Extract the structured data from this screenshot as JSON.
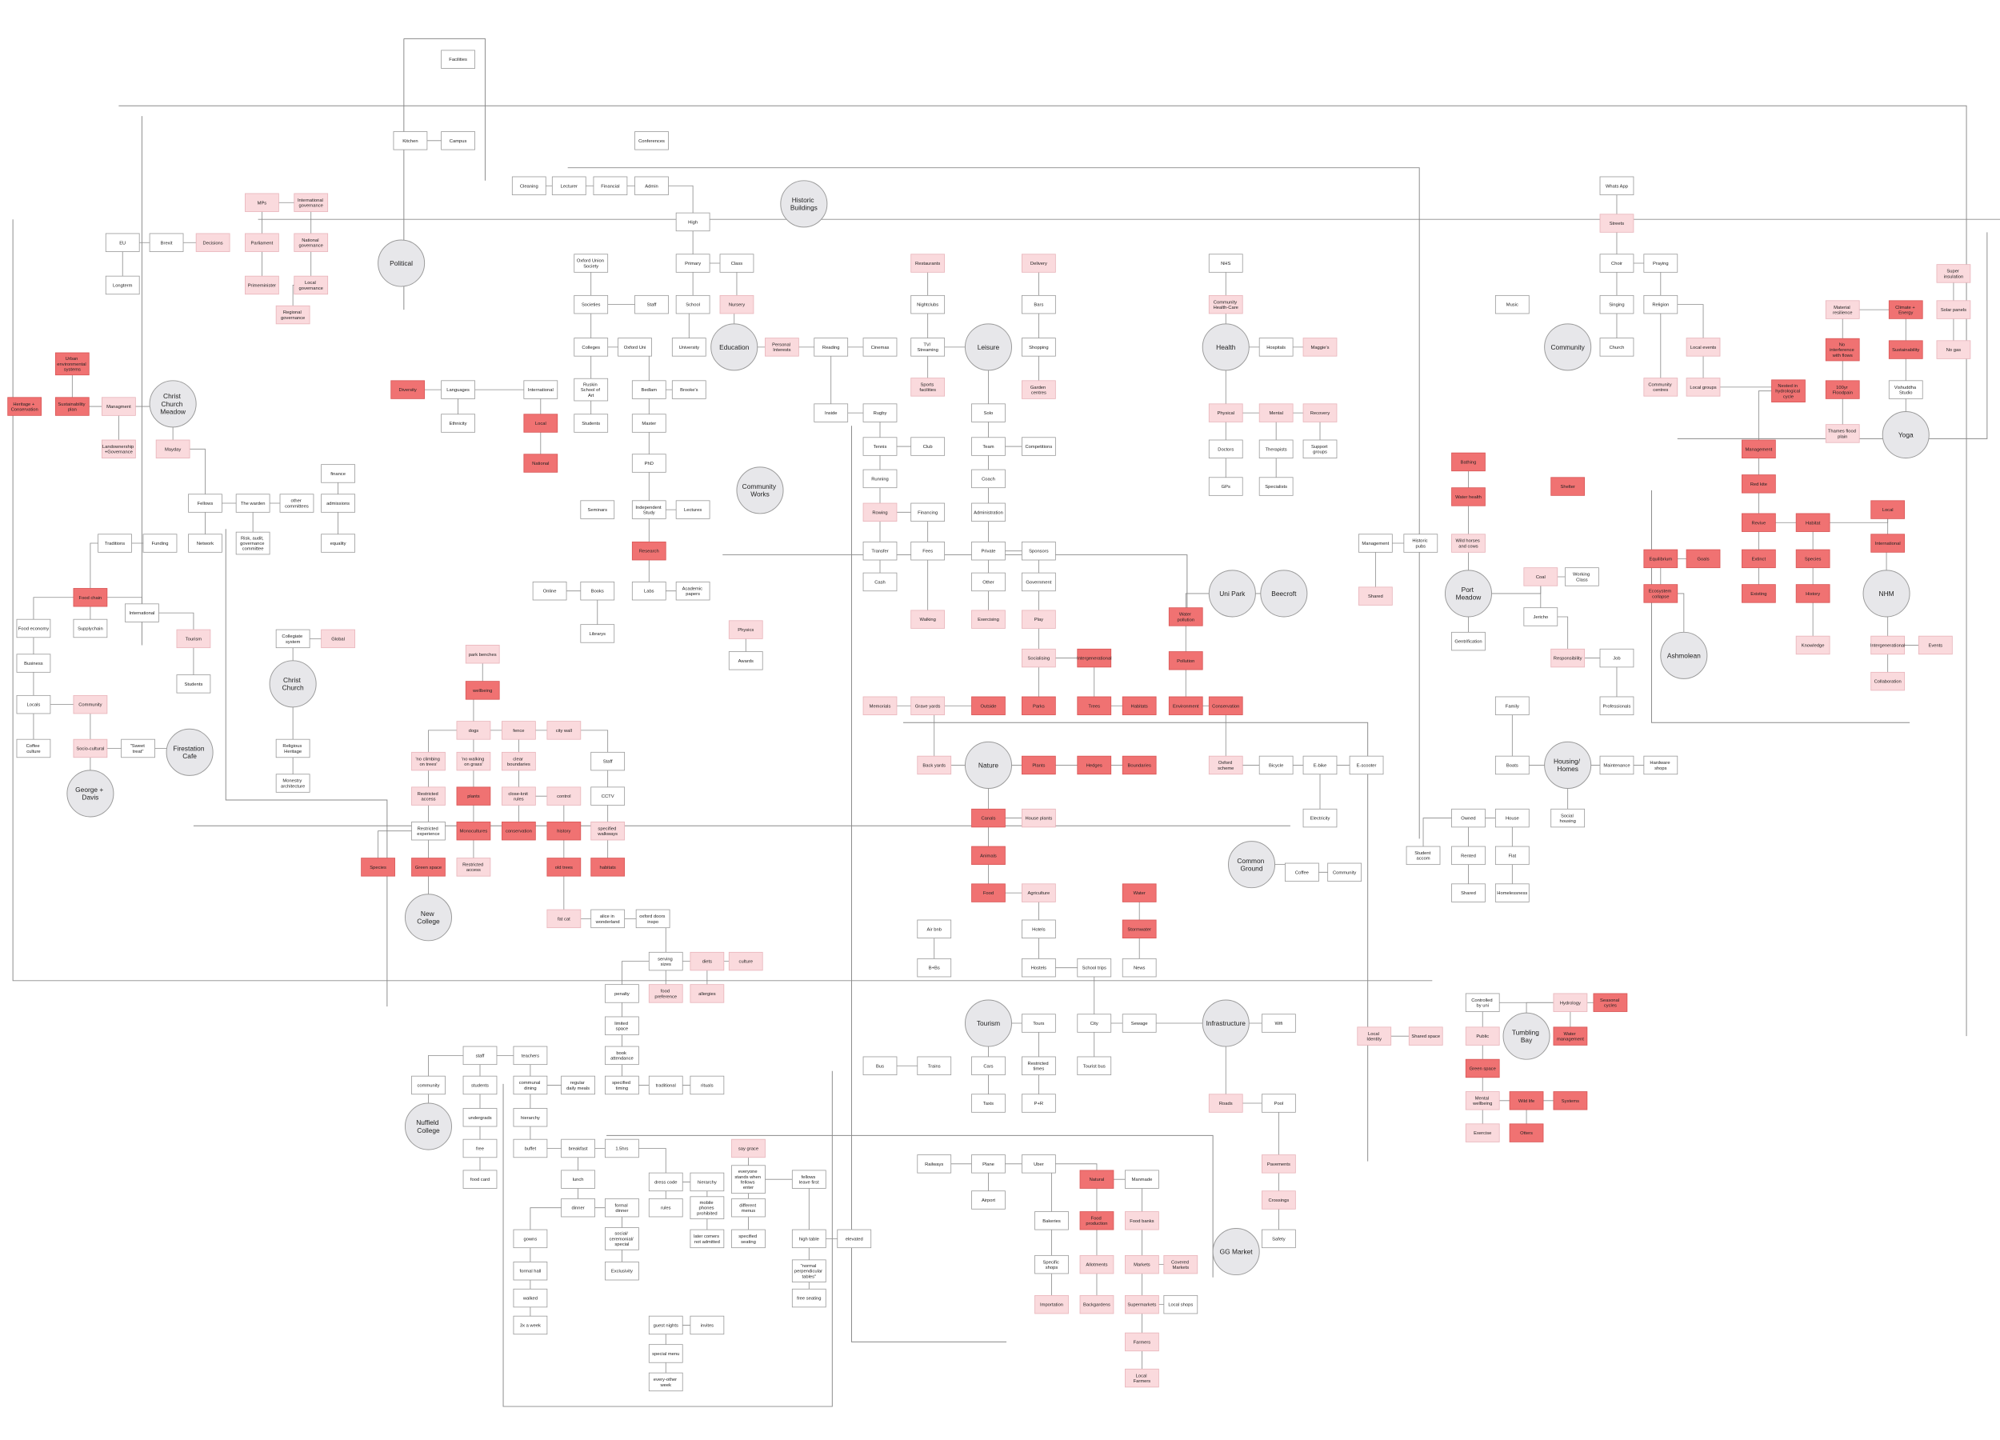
{
  "nodes": [
    "Facilities",
    "Kitchen",
    "Campus",
    "Conferences",
    "Cleaning",
    "Lecturer",
    "Financial",
    "Admin",
    "Historic Buildings",
    "Whats App",
    "Streets",
    "MPs",
    "International governance",
    "EU",
    "Brexit",
    "Decisions",
    "Parliament",
    "National governance",
    "Longterm",
    "Primeminister",
    "Local governance",
    "Regional governance",
    "Political",
    "High",
    "Oxford Union Society",
    "Primary",
    "Class",
    "Restaurants",
    "Delivery",
    "NHS",
    "Choir",
    "Praying",
    "Super insulation",
    "Societies",
    "Staff",
    "School",
    "Nursery",
    "Nightclubs",
    "Bars",
    "Community Health-Care",
    "Music",
    "Singing",
    "Religion",
    "Material resilience",
    "Climate + Energy",
    "Solar panels",
    "Urban environmental systems",
    "Colleges",
    "Oxford Uni",
    "University",
    "Education",
    "Personal Interests",
    "Reading",
    "Cinemas",
    "TV/ Streaming",
    "Leisure",
    "Shopping",
    "Health",
    "Hospitals",
    "Maggie's",
    "Community",
    "Church",
    "Local events",
    "No interference with flows",
    "Sustainability",
    "No gas",
    "Heritage + Conservation",
    "Sustainability plan",
    "Managment",
    "Christ Church Meadow",
    "Diversity",
    "Languages",
    "International",
    "Ruskin School of Art",
    "Bedlam",
    "Brooke's",
    "Sports facilities",
    "Garden centres",
    "Community centres",
    "Local groups",
    "Nested in hydrological cycle",
    "100yr Floodpain",
    "Vishuddha Studio",
    "Landownership +Governance",
    "Mayday",
    "Ethnicity",
    "Local",
    "Students",
    "Master",
    "Inside",
    "Rugby",
    "Solo",
    "Physical",
    "Mental",
    "Recovery",
    "Thames flood plain",
    "Yoga",
    "National",
    "PhD",
    "Community Works",
    "Tennis",
    "Club",
    "Team",
    "Competitions",
    "Doctors",
    "Therapists",
    "Support groups",
    "Management",
    "Bathing",
    "finance",
    "Running",
    "Coach",
    "GPs",
    "Specialists",
    "Shelter",
    "Red kite",
    "Fellows",
    "The warden",
    "other committees",
    "admissions",
    "Seminars",
    "Independent Study",
    "Lectures",
    "Rowing",
    "Financing",
    "Administration",
    "Water health",
    "Revive",
    "Habitat",
    "Local",
    "Traditions",
    "Funding",
    "Network",
    "Risk, audit, governance committee",
    "equality",
    "Research",
    "Transfer",
    "Fees",
    "Private",
    "Sponsors",
    "Management",
    "Historic pubs",
    "Wild horses and cows",
    "International",
    "Equilibrium",
    "Goals",
    "Extinct",
    "Species",
    "Online",
    "Books",
    "Labs",
    "Academic papers",
    "Cash",
    "Other",
    "Government",
    "Uni Park",
    "Beecroft",
    "Port Meadow",
    "Coal",
    "Working Class",
    "Food chain",
    "Shared",
    "Ecosystem collapse",
    "Existing",
    "History",
    "NHM",
    "International",
    "Food economy",
    "Supplychain",
    "Librarys",
    "Physics",
    "Walking",
    "Exercising",
    "Play",
    "Water pollution",
    "Jericho",
    "Tourism",
    "Collegiate system",
    "Global",
    "Gentrification",
    "Knowledge",
    "Intergenerational",
    "Events",
    "Ashmolean",
    "park benches",
    "Awards",
    "Socialising",
    "Intergenerational",
    "Pollution",
    "Responsibility",
    "Job",
    "Business",
    "Students",
    "Christ Church",
    "wellbeing",
    "Collaboration",
    "Locals",
    "Community",
    "Memorials",
    "Grave yards",
    "Outside",
    "Parks",
    "Trees",
    "Habitats",
    "Environment",
    "Conservation",
    "Family",
    "Professionals",
    "dogs",
    "fence",
    "city wall",
    "Coffee culture",
    "Socio-cultural",
    "\"Sweet treat\"",
    "Firestation Cafe",
    "Religious Heritage",
    "'no climbing on trees'",
    "'no walking on grass'",
    "clear boundaries",
    "Staff",
    "Back yards",
    "Nature",
    "Plants",
    "Hedges",
    "Boundaries",
    "Oxford scheme",
    "Bicycle",
    "E-bike",
    "E-scooter",
    "Boats",
    "Housing/ Homes",
    "Maintenance",
    "Hardware shops",
    "George + Davis",
    "Monestry architecture",
    "Restricted access",
    "plants",
    "close-knit rules",
    "control",
    "CCTV",
    "Canals",
    "House plants",
    "Electricity",
    "Owned",
    "House",
    "Social housing",
    "Restricted experience",
    "Monocultures",
    "conservation",
    "history",
    "specified walkways",
    "Animals",
    "Common Ground",
    "Student accom",
    "Rented",
    "Flat",
    "Species",
    "Green space",
    "Restricted access",
    "old trees",
    "habitats",
    "Coffee",
    "Community",
    "Food",
    "Agriculture",
    "Water",
    "Shared",
    "Homelessness",
    "New College",
    "fat cat",
    "alice in wonderland",
    "oxford doors inspo",
    "Air bnb",
    "Hotels",
    "Stormwater",
    "serving sizes",
    "diets",
    "culture",
    "B+Bs",
    "Hostels",
    "School trips",
    "News",
    "penalty",
    "food preference",
    "allergies",
    "Hydrology",
    "Seasonal cycles",
    "Controlled by uni",
    "limited space",
    "Tourism",
    "Tours",
    "City",
    "Sewage",
    "Infrastructure",
    "Wifi",
    "Tumbling Bay",
    "Local Identity",
    "Shared space",
    "Public",
    "Water management",
    "staff",
    "teachers",
    "book attendance",
    "Bus",
    "Trains",
    "Cars",
    "Restricted times",
    "Tourist bus",
    "Green space",
    "community",
    "students",
    "communal dining",
    "regular daily meals",
    "specified timing",
    "traditional",
    "rituals",
    "Nuffield College",
    "undergrads",
    "hierarchy",
    "Taxis",
    "P+R",
    "Roads",
    "Pool",
    "Mental wellbeing",
    "Wild life",
    "Systems",
    "Exercise",
    "Otters",
    "free",
    "buffet",
    "breakfast",
    "1.5hrs",
    "say grace",
    "Railways",
    "Plane",
    "Uber",
    "Pavements",
    "food card",
    "lunch",
    "dress code",
    "hierarchy",
    "everyone stands when fellows enter",
    "fellows leave first",
    "Natural",
    "Manmade",
    "Airport",
    "Crossings",
    "dinner",
    "formal dinner",
    "rules",
    "mobile phones prohibited",
    "different menus",
    "Bakeries",
    "Food production",
    "Food banks",
    "gowns",
    "social/ ceremonial/ special",
    "later comers not admitted",
    "specified seating",
    "high table",
    "elevated",
    "GG Market",
    "Safety",
    "formal hall",
    "Exclusivity",
    "Specific shops",
    "Allotments",
    "Markets",
    "Covered Markets",
    "\"normal perpendicular tables\"",
    "walked",
    "free seating",
    "Importation",
    "Backgardens",
    "Supermarkets",
    "Local shops",
    "3x a week",
    "guest nights",
    "invites",
    "Farmers",
    "special menu",
    "every-other week",
    "Local Farmers"
  ]
}
